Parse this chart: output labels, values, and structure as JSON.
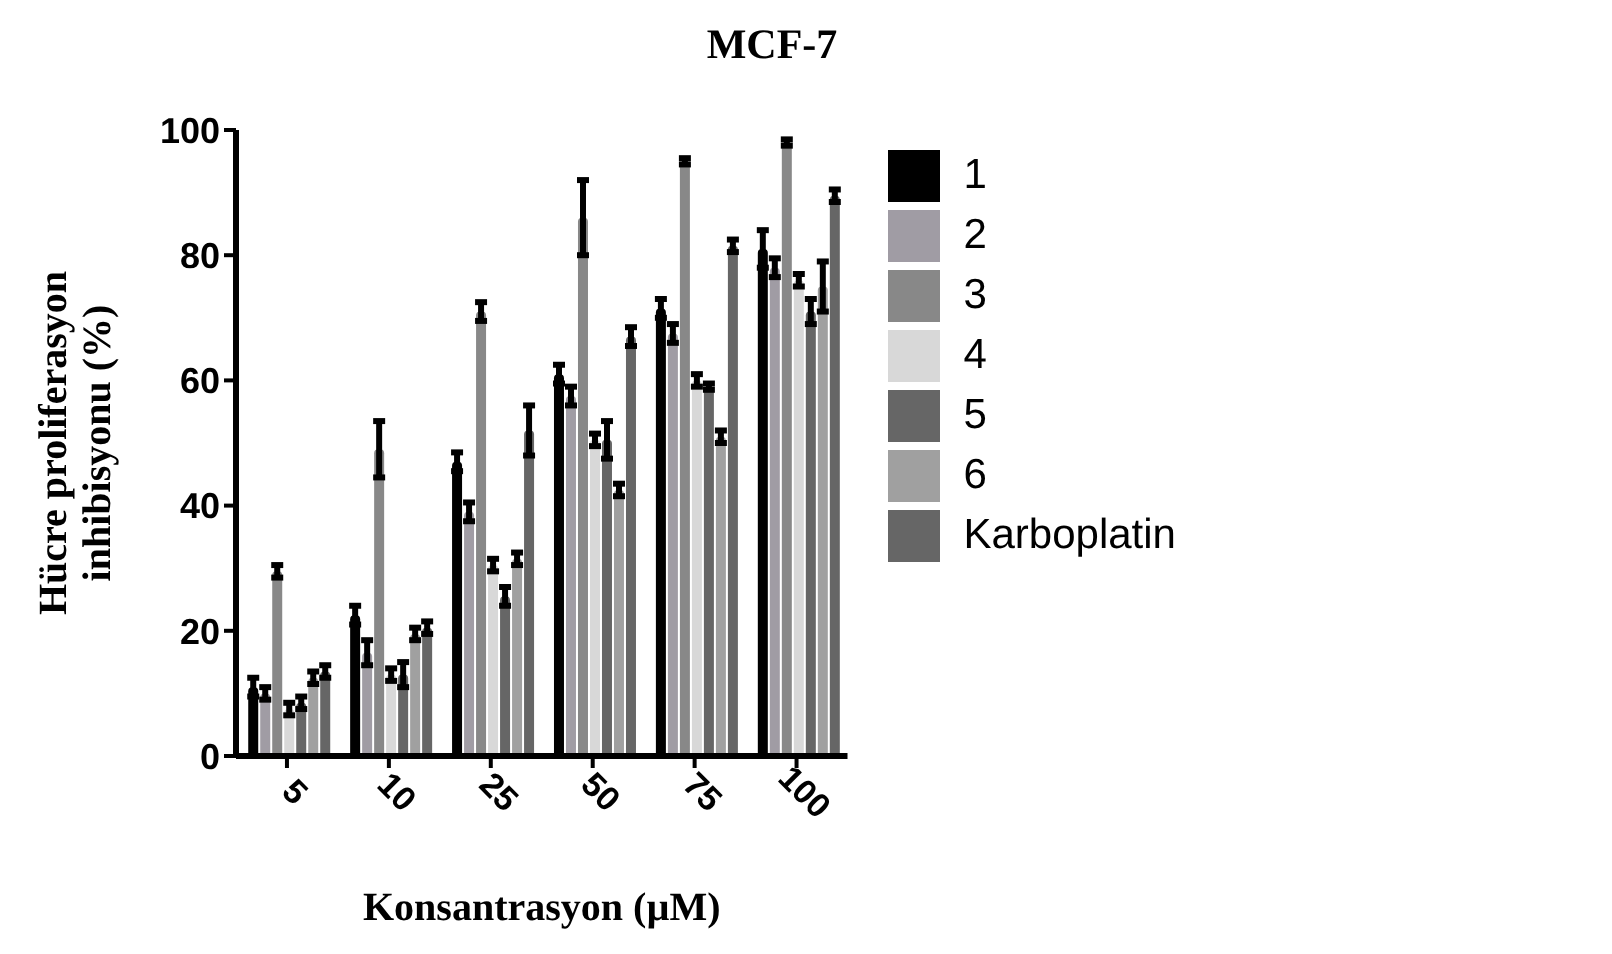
{
  "chart_data": {
    "type": "bar",
    "title": "MCF-7",
    "xlabel": "Konsantrasyon (µM)",
    "ylabel": "Hücre proliferasyon inhibisyonu (%)",
    "categories": [
      "5",
      "10",
      "25",
      "50",
      "75",
      "100"
    ],
    "series": [
      {
        "name": "1",
        "color": "#000000",
        "values": [
          11,
          22.5,
          47,
          61,
          71.5,
          81
        ],
        "errors": [
          1.5,
          1.5,
          1.5,
          1.5,
          1.5,
          3
        ]
      },
      {
        "name": "2",
        "color": "#a09ca4",
        "values": [
          10,
          16.5,
          39,
          57.5,
          67.5,
          78
        ],
        "errors": [
          1,
          2,
          1.5,
          1.5,
          1.5,
          1.5
        ]
      },
      {
        "name": "3",
        "color": "#888888",
        "values": [
          29.5,
          49,
          71,
          86,
          95,
          98
        ],
        "errors": [
          1,
          4.5,
          1.5,
          6,
          0.5,
          0.5
        ]
      },
      {
        "name": "4",
        "color": "#d8d8d8",
        "values": [
          7.5,
          13,
          30.5,
          50.5,
          60,
          76
        ],
        "errors": [
          1,
          1,
          1,
          1,
          1,
          1
        ]
      },
      {
        "name": "5",
        "color": "#666666",
        "values": [
          8.5,
          13,
          25.5,
          50.5,
          59,
          71
        ],
        "errors": [
          1,
          2,
          1.5,
          3,
          0.5,
          2
        ]
      },
      {
        "name": "6",
        "color": "#a0a0a0",
        "values": [
          12.5,
          19.5,
          31.5,
          42.5,
          51,
          75
        ],
        "errors": [
          1,
          1,
          1,
          1,
          1,
          4
        ]
      },
      {
        "name": "Karboplatin",
        "color": "#666666",
        "values": [
          13.5,
          20.5,
          52,
          67,
          81.5,
          89.5
        ],
        "errors": [
          1,
          1,
          4,
          1.5,
          1,
          1
        ]
      }
    ],
    "ylim": [
      0,
      100
    ],
    "yticks": [
      0,
      20,
      40,
      60,
      80,
      100
    ],
    "grid": false,
    "legend": "right"
  }
}
